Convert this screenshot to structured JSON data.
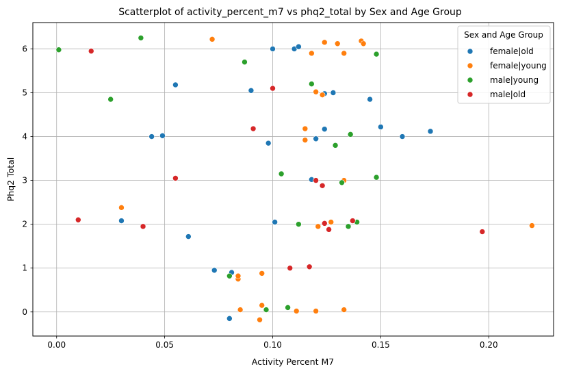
{
  "chart_data": {
    "type": "scatter",
    "title": "Scatterplot of activity_percent_m7 vs phq2_total by Sex and Age Group",
    "xlabel": "Activity Percent M7",
    "ylabel": "Phq2 Total",
    "xlim": [
      -0.011,
      0.23
    ],
    "ylim": [
      -0.55,
      6.6
    ],
    "xticks": [
      0.0,
      0.05,
      0.1,
      0.15,
      0.2
    ],
    "xtick_labels": [
      "0.00",
      "0.05",
      "0.10",
      "0.15",
      "0.20"
    ],
    "yticks": [
      0,
      1,
      2,
      3,
      4,
      5,
      6
    ],
    "ytick_labels": [
      "0",
      "1",
      "2",
      "3",
      "4",
      "5",
      "6"
    ],
    "grid": true,
    "legend": {
      "title": "Sex and Age Group",
      "placement": "top-right"
    },
    "series": [
      {
        "name": "female|old",
        "color": "#1f77b4",
        "points": [
          [
            0.145,
            4.85
          ],
          [
            0.128,
            5.0
          ],
          [
            0.124,
            4.98
          ],
          [
            0.15,
            4.22
          ],
          [
            0.16,
            4.0
          ],
          [
            0.173,
            4.12
          ],
          [
            0.124,
            4.17
          ],
          [
            0.12,
            3.95
          ],
          [
            0.118,
            3.02
          ],
          [
            0.11,
            6.0
          ],
          [
            0.112,
            6.05
          ],
          [
            0.1,
            6.0
          ],
          [
            0.098,
            3.85
          ],
          [
            0.101,
            2.05
          ],
          [
            0.09,
            5.05
          ],
          [
            0.061,
            1.72
          ],
          [
            0.055,
            5.18
          ],
          [
            0.049,
            4.02
          ],
          [
            0.081,
            0.9
          ],
          [
            0.073,
            0.95
          ],
          [
            0.08,
            -0.15
          ],
          [
            0.044,
            4.0
          ],
          [
            0.03,
            2.08
          ]
        ]
      },
      {
        "name": "female|young",
        "color": "#ff7f0e",
        "points": [
          [
            0.141,
            6.18
          ],
          [
            0.142,
            6.12
          ],
          [
            0.133,
            5.9
          ],
          [
            0.13,
            6.12
          ],
          [
            0.124,
            6.15
          ],
          [
            0.118,
            5.9
          ],
          [
            0.12,
            5.02
          ],
          [
            0.123,
            4.95
          ],
          [
            0.115,
            4.18
          ],
          [
            0.115,
            3.92
          ],
          [
            0.133,
            3.0
          ],
          [
            0.127,
            2.05
          ],
          [
            0.121,
            1.95
          ],
          [
            0.22,
            1.97
          ],
          [
            0.095,
            0.15
          ],
          [
            0.085,
            0.05
          ],
          [
            0.094,
            -0.18
          ],
          [
            0.133,
            0.05
          ],
          [
            0.12,
            0.02
          ],
          [
            0.111,
            0.02
          ],
          [
            0.084,
            0.75
          ],
          [
            0.084,
            0.82
          ],
          [
            0.03,
            2.38
          ],
          [
            0.072,
            6.22
          ],
          [
            0.095,
            0.88
          ]
        ]
      },
      {
        "name": "male|young",
        "color": "#2ca02c",
        "points": [
          [
            0.148,
            5.88
          ],
          [
            0.136,
            4.05
          ],
          [
            0.129,
            3.8
          ],
          [
            0.148,
            3.07
          ],
          [
            0.132,
            2.95
          ],
          [
            0.139,
            2.05
          ],
          [
            0.135,
            1.95
          ],
          [
            0.118,
            5.2
          ],
          [
            0.107,
            0.1
          ],
          [
            0.097,
            0.05
          ],
          [
            0.08,
            0.82
          ],
          [
            0.087,
            5.7
          ],
          [
            0.112,
            2.0
          ],
          [
            0.104,
            3.15
          ],
          [
            0.025,
            4.85
          ],
          [
            0.039,
            6.25
          ],
          [
            0.001,
            5.98
          ]
        ]
      },
      {
        "name": "male|old",
        "color": "#d62728",
        "points": [
          [
            0.197,
            1.83
          ],
          [
            0.137,
            2.08
          ],
          [
            0.126,
            1.88
          ],
          [
            0.124,
            2.02
          ],
          [
            0.12,
            3.0
          ],
          [
            0.123,
            2.88
          ],
          [
            0.117,
            1.03
          ],
          [
            0.108,
            1.0
          ],
          [
            0.1,
            5.1
          ],
          [
            0.091,
            4.18
          ],
          [
            0.055,
            3.05
          ],
          [
            0.04,
            1.95
          ],
          [
            0.01,
            2.1
          ],
          [
            0.016,
            5.95
          ]
        ]
      }
    ]
  }
}
